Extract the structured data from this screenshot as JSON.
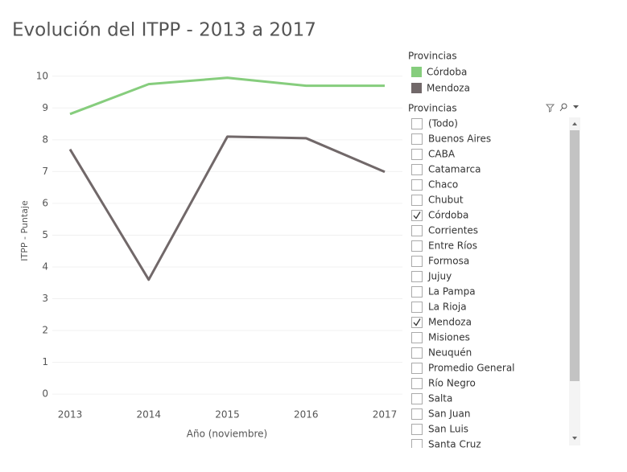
{
  "chart_data": {
    "type": "line",
    "title": "Evolución del ITPP - 2013 a 2017",
    "x_label": "Año (noviembre)",
    "y_label": "ITPP - Puntaje",
    "categories": [
      "2013",
      "2014",
      "2015",
      "2016",
      "2017"
    ],
    "series": [
      {
        "name": "Córdoba",
        "color": "#86cd7d",
        "values": [
          8.81,
          9.75,
          9.95,
          9.7,
          9.7
        ]
      },
      {
        "name": "Mendoza",
        "color": "#716869",
        "values": [
          7.7,
          3.6,
          8.1,
          8.05,
          6.99
        ]
      }
    ],
    "ylim": [
      -0.25,
      10.5
    ],
    "yticks": [
      0,
      1,
      2,
      3,
      4,
      5,
      6,
      7,
      8,
      9,
      10
    ],
    "grid": true,
    "legend_title": "Provincias"
  },
  "filter": {
    "title": "Provincias",
    "items": [
      {
        "label": "(Todo)",
        "checked": false
      },
      {
        "label": "Buenos Aires",
        "checked": false
      },
      {
        "label": "CABA",
        "checked": false
      },
      {
        "label": "Catamarca",
        "checked": false
      },
      {
        "label": "Chaco",
        "checked": false
      },
      {
        "label": "Chubut",
        "checked": false
      },
      {
        "label": "Córdoba",
        "checked": true
      },
      {
        "label": "Corrientes",
        "checked": false
      },
      {
        "label": "Entre Ríos",
        "checked": false
      },
      {
        "label": "Formosa",
        "checked": false
      },
      {
        "label": "Jujuy",
        "checked": false
      },
      {
        "label": "La Pampa",
        "checked": false
      },
      {
        "label": "La Rioja",
        "checked": false
      },
      {
        "label": "Mendoza",
        "checked": true
      },
      {
        "label": "Misiones",
        "checked": false
      },
      {
        "label": "Neuquén",
        "checked": false
      },
      {
        "label": "Promedio General",
        "checked": false
      },
      {
        "label": "Río Negro",
        "checked": false
      },
      {
        "label": "Salta",
        "checked": false
      },
      {
        "label": "San Juan",
        "checked": false
      },
      {
        "label": "San Luis",
        "checked": false
      },
      {
        "label": "Santa Cruz",
        "checked": false
      }
    ]
  }
}
